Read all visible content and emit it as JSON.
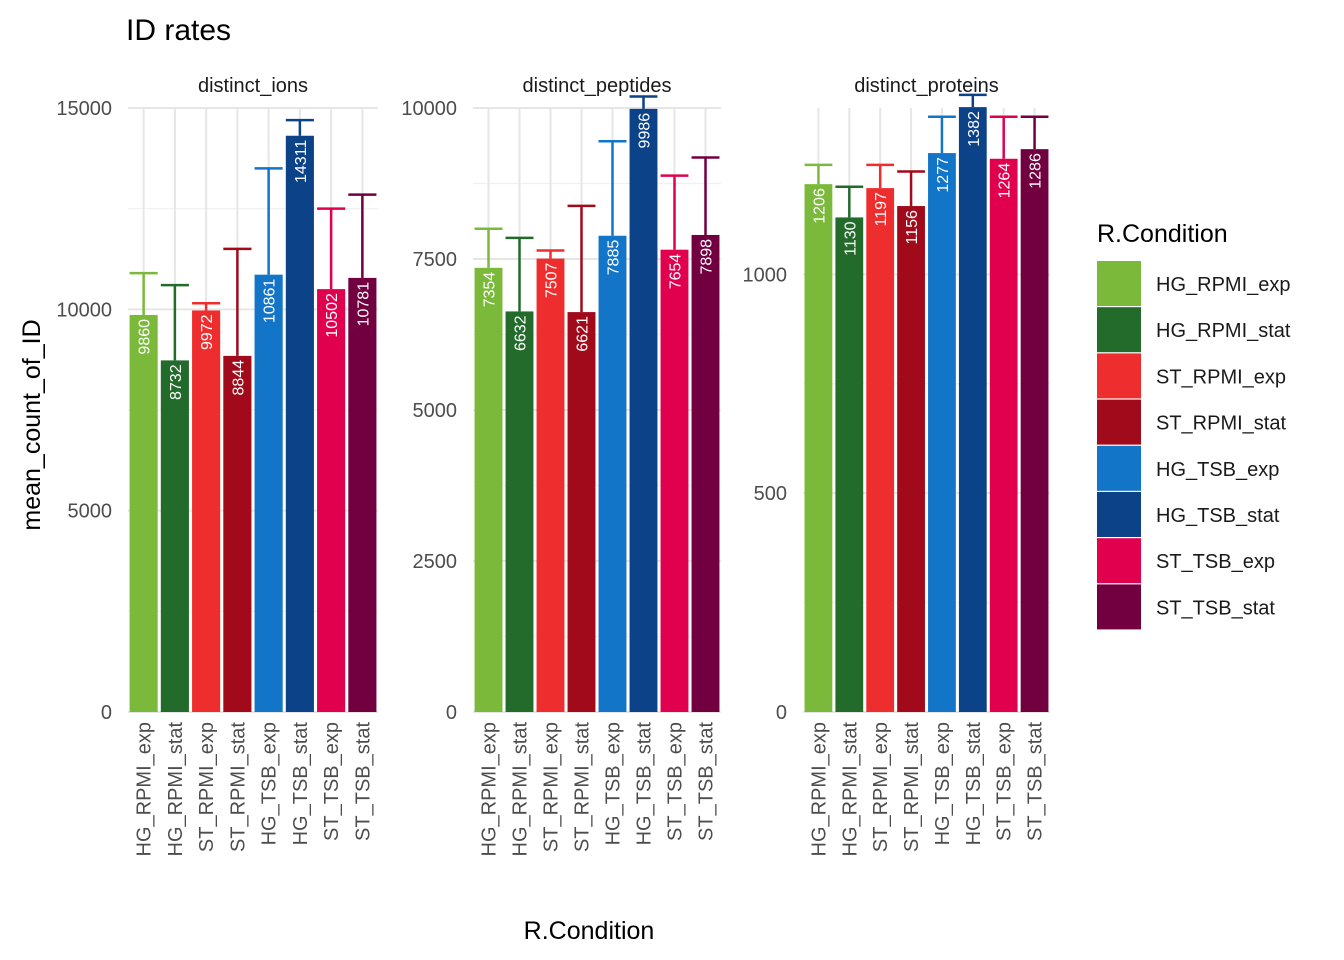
{
  "chart_data": {
    "type": "bar",
    "title": "ID rates",
    "xlabel": "R.Condition",
    "ylabel": "mean_count_of_ID",
    "grid": true,
    "legend": {
      "title": "R.Condition",
      "position": "right"
    },
    "categories": [
      "HG_RPMI_exp",
      "HG_RPMI_stat",
      "ST_RPMI_exp",
      "ST_RPMI_stat",
      "HG_TSB_exp",
      "HG_TSB_stat",
      "ST_TSB_exp",
      "ST_TSB_stat"
    ],
    "colors": [
      "#7ab93a",
      "#236b2b",
      "#ee2e2e",
      "#a00a1a",
      "#1275c7",
      "#0b4288",
      "#e0004e",
      "#720040"
    ],
    "panels": [
      {
        "name": "distinct_ions",
        "ylim": [
          0,
          15000
        ],
        "yticks": [
          0,
          5000,
          10000,
          15000
        ],
        "ytick_labels": [
          "0",
          "5000",
          "10000",
          "15000"
        ],
        "values": [
          9860,
          8732,
          9972,
          8844,
          10861,
          14311,
          10502,
          10781
        ],
        "labels": [
          "9860",
          "8732",
          "9972",
          "8844",
          "10861",
          "14311",
          "10502",
          "10781"
        ],
        "error_upper": [
          10900,
          10600,
          10150,
          11500,
          13500,
          14700,
          12500,
          12850
        ]
      },
      {
        "name": "distinct_peptides",
        "ylim": [
          0,
          10000
        ],
        "yticks": [
          0,
          2500,
          5000,
          7500,
          10000
        ],
        "ytick_labels": [
          "0",
          "2500",
          "5000",
          "7500",
          "10000"
        ],
        "values": [
          7354,
          6632,
          7507,
          6621,
          7885,
          9986,
          7654,
          7898
        ],
        "labels": [
          "7354",
          "6632",
          "7507",
          "6621",
          "7885",
          "9986",
          "7654",
          "7898"
        ],
        "error_upper": [
          8000,
          7850,
          7640,
          8380,
          9450,
          10190,
          8880,
          9180
        ]
      },
      {
        "name": "distinct_proteins",
        "ylim": [
          0,
          1380
        ],
        "yticks": [
          0,
          500,
          1000
        ],
        "ytick_labels": [
          "0",
          "500",
          "1000"
        ],
        "values": [
          1206,
          1130,
          1197,
          1156,
          1277,
          1382,
          1264,
          1286
        ],
        "labels": [
          "1206",
          "1130",
          "1197",
          "1156",
          "1277",
          "1382",
          "1264",
          "1286"
        ],
        "error_upper": [
          1250,
          1200,
          1250,
          1235,
          1360,
          1410,
          1360,
          1360
        ]
      }
    ]
  }
}
